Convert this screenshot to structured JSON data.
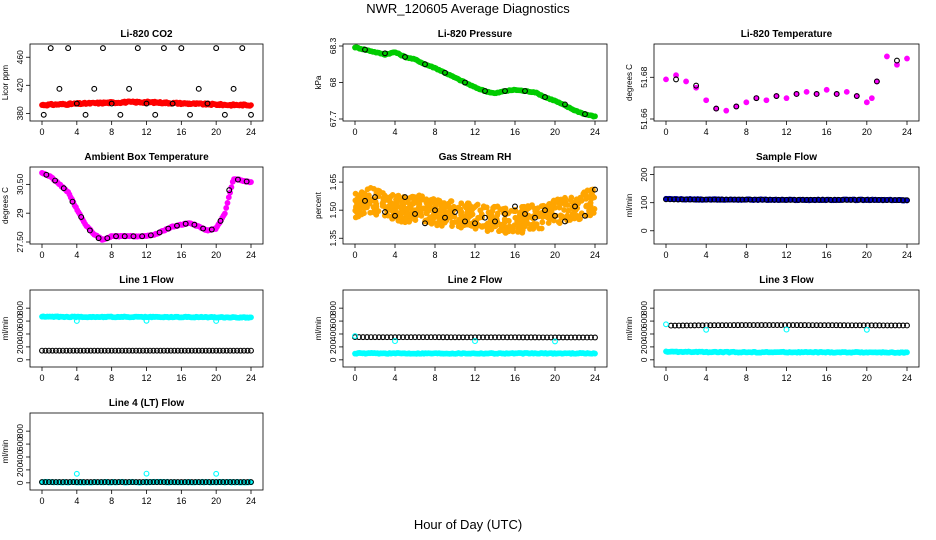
{
  "title": "NWR_120605  Average Diagnostics",
  "xlabel": "Hour of Day (UTC)",
  "colors": {
    "co2": "#ff0000",
    "pressure": "#00cc00",
    "temperature": "#ff00ff",
    "box": "#ff00ff",
    "rh": "#ffa500",
    "sample": "#0000cc",
    "line": "#00ffff",
    "points": "#000000"
  },
  "chart_data": [
    {
      "type": "scatter",
      "title": "Li-820 CO2",
      "ylabel": "Licor ppm",
      "xlim": [
        0,
        24
      ],
      "ylim": [
        372,
        476
      ],
      "xticks": [
        0,
        4,
        8,
        12,
        16,
        20,
        24
      ],
      "yticks": [
        380,
        420,
        460
      ],
      "series": [
        {
          "color": "#ff0000",
          "marker": "filled",
          "kind": "band",
          "x_start": 0,
          "x_end": 24,
          "values": [
            392,
            393,
            394,
            395,
            396,
            396,
            395,
            394,
            393,
            392,
            392
          ]
        },
        {
          "color": "#000000",
          "marker": "open",
          "x": [
            0.2,
            1.0,
            2.0,
            3.0,
            4.0,
            5.0,
            6.0,
            7.0,
            8.0,
            9.0,
            10.0,
            11.0,
            12.0,
            13.0,
            14.0,
            15.0,
            16.0,
            17.0,
            18.0,
            19.0,
            20.0,
            21.0,
            22.0,
            23.0,
            24.0
          ],
          "y": [
            378,
            473,
            415,
            473,
            394,
            378,
            415,
            473,
            394,
            378,
            415,
            473,
            394,
            378,
            473,
            394,
            473,
            378,
            415,
            394,
            473,
            378,
            415,
            473,
            378
          ]
        }
      ]
    },
    {
      "type": "line",
      "title": "Li-820 Pressure",
      "ylabel": "kPa",
      "xlim": [
        0,
        24
      ],
      "ylim": [
        67.7,
        68.3
      ],
      "xticks": [
        0,
        4,
        8,
        12,
        16,
        20,
        24
      ],
      "yticks": [
        67.7,
        68.0,
        68.3
      ],
      "series": [
        {
          "color": "#00cc00",
          "marker": "filled",
          "x": [
            0,
            1,
            2,
            3,
            4,
            5,
            6,
            7,
            8,
            9,
            10,
            11,
            12,
            13,
            14,
            15,
            16,
            17,
            18,
            19,
            20,
            21,
            22,
            23,
            24
          ],
          "y": [
            68.29,
            68.27,
            68.25,
            68.23,
            68.25,
            68.21,
            68.19,
            68.15,
            68.12,
            68.08,
            68.04,
            68.0,
            67.96,
            67.93,
            67.91,
            67.93,
            67.94,
            67.93,
            67.92,
            67.88,
            67.85,
            67.81,
            67.77,
            67.74,
            67.72
          ]
        },
        {
          "color": "#000000",
          "marker": "open",
          "x": [
            1,
            3,
            5,
            7,
            9,
            11,
            13,
            15,
            17,
            19,
            21,
            23
          ],
          "y": [
            68.27,
            68.24,
            68.21,
            68.15,
            68.08,
            68.0,
            67.93,
            67.93,
            67.93,
            67.88,
            67.82,
            67.74
          ]
        }
      ]
    },
    {
      "type": "scatter",
      "title": "Li-820 Temperature",
      "ylabel": "degrees C",
      "xlim": [
        0,
        24
      ],
      "ylim": [
        51.66,
        51.695
      ],
      "xticks": [
        0,
        4,
        8,
        12,
        16,
        20,
        24
      ],
      "yticks": [
        51.66,
        51.68
      ],
      "series": [
        {
          "color": "#ff00ff",
          "marker": "filled",
          "x": [
            0,
            1,
            2,
            3,
            4,
            5,
            6,
            7,
            8,
            9,
            10,
            11,
            12,
            13,
            14,
            15,
            16,
            17,
            18,
            19,
            20,
            20.5,
            21,
            22,
            23,
            24
          ],
          "y": [
            51.679,
            51.681,
            51.678,
            51.675,
            51.669,
            51.665,
            51.664,
            51.666,
            51.668,
            51.67,
            51.669,
            51.671,
            51.67,
            51.672,
            51.673,
            51.672,
            51.674,
            51.672,
            51.673,
            51.671,
            51.668,
            51.67,
            51.678,
            51.69,
            51.686,
            51.689
          ]
        },
        {
          "color": "#000000",
          "marker": "open",
          "x": [
            1,
            3,
            5,
            7,
            9,
            11,
            13,
            15,
            17,
            19,
            21,
            23
          ],
          "y": [
            51.679,
            51.676,
            51.665,
            51.666,
            51.67,
            51.671,
            51.672,
            51.672,
            51.672,
            51.671,
            51.678,
            51.688
          ]
        }
      ]
    },
    {
      "type": "line",
      "title": "Ambient Box Temperature",
      "ylabel": "degrees C",
      "xlim": [
        0,
        24
      ],
      "ylim": [
        27.5,
        31.3
      ],
      "xticks": [
        0,
        4,
        8,
        12,
        16,
        20,
        24
      ],
      "yticks": [
        27.5,
        29.0,
        30.5
      ],
      "series": [
        {
          "color": "#ff00ff",
          "marker": "filled",
          "x": [
            0,
            1,
            2,
            3,
            4,
            5,
            6,
            7,
            8,
            9,
            10,
            11,
            12,
            13,
            14,
            15,
            16,
            17,
            18,
            19,
            20,
            21,
            22,
            23,
            24
          ],
          "y": [
            31.1,
            30.9,
            30.5,
            30.1,
            29.2,
            28.4,
            27.9,
            27.6,
            27.8,
            27.8,
            27.8,
            27.8,
            27.8,
            27.9,
            28.1,
            28.3,
            28.4,
            28.5,
            28.3,
            28.1,
            28.2,
            29.0,
            30.8,
            30.7,
            30.6
          ]
        },
        {
          "color": "#000000",
          "marker": "open",
          "x": [
            0.5,
            1.5,
            2.5,
            3.5,
            4.5,
            5.5,
            6.5,
            7.5,
            8.5,
            9.5,
            10.5,
            11.5,
            12.5,
            13.5,
            14.5,
            15.5,
            16.5,
            17.5,
            18.5,
            19.5,
            20.5,
            21.5,
            22.5,
            23.5
          ],
          "y": [
            31.0,
            30.7,
            30.3,
            29.6,
            28.8,
            28.1,
            27.7,
            27.7,
            27.8,
            27.8,
            27.8,
            27.8,
            27.85,
            28.0,
            28.2,
            28.35,
            28.45,
            28.4,
            28.2,
            28.15,
            28.6,
            30.2,
            30.75,
            30.65
          ]
        }
      ]
    },
    {
      "type": "scatter",
      "title": "Gas Stream RH",
      "ylabel": "percent",
      "xlim": [
        0,
        24
      ],
      "ylim": [
        1.33,
        1.72
      ],
      "xticks": [
        0,
        4,
        8,
        12,
        16,
        20,
        24
      ],
      "yticks": [
        1.35,
        1.5,
        1.65
      ],
      "series": [
        {
          "color": "#ffa500",
          "marker": "filled",
          "kind": "cloud",
          "x_start": 0,
          "x_end": 24,
          "center": [
            1.52,
            1.55,
            1.53,
            1.5,
            1.52,
            1.49,
            1.48,
            1.47,
            1.46,
            1.45,
            1.44,
            1.46,
            1.47,
            1.5,
            1.52,
            1.55
          ],
          "spread": 0.07
        },
        {
          "color": "#000000",
          "marker": "open",
          "x": [
            1,
            2,
            3,
            4,
            5,
            6,
            7,
            8,
            9,
            10,
            11,
            12,
            13,
            14,
            15,
            16,
            17,
            18,
            19,
            20,
            21,
            22,
            23,
            24
          ],
          "y": [
            1.55,
            1.57,
            1.49,
            1.47,
            1.57,
            1.48,
            1.43,
            1.5,
            1.46,
            1.49,
            1.44,
            1.43,
            1.46,
            1.44,
            1.48,
            1.52,
            1.48,
            1.46,
            1.5,
            1.47,
            1.44,
            1.52,
            1.47,
            1.61
          ]
        }
      ]
    },
    {
      "type": "line",
      "title": "Sample Flow",
      "ylabel": "ml/min",
      "xlim": [
        0,
        24
      ],
      "ylim": [
        -40,
        220
      ],
      "xticks": [
        0,
        4,
        8,
        12,
        16,
        20,
        24
      ],
      "yticks": [
        0,
        100,
        200
      ],
      "series": [
        {
          "color": "#0000cc",
          "marker": "filled",
          "x": [
            0,
            4,
            8,
            12,
            16,
            20,
            24
          ],
          "y": [
            113,
            111,
            111,
            110,
            110,
            110,
            109
          ]
        },
        {
          "color": "#000000",
          "marker": "open",
          "x": [
            0,
            4,
            8,
            12,
            16,
            20,
            24
          ],
          "y": [
            112,
            111,
            111,
            110,
            110,
            110,
            109
          ]
        }
      ]
    },
    {
      "type": "line",
      "title": "Line 1 Flow",
      "ylabel": "ml/min",
      "xlim": [
        0,
        24
      ],
      "ylim": [
        -80,
        1050
      ],
      "xticks": [
        0,
        4,
        8,
        12,
        16,
        20,
        24
      ],
      "yticks": [
        0,
        200,
        400,
        600,
        800
      ],
      "series": [
        {
          "color": "#00ffff",
          "marker": "filled",
          "x": [
            0,
            4,
            8,
            12,
            16,
            20,
            24
          ],
          "y": [
            668,
            664,
            664,
            662,
            662,
            660,
            655
          ]
        },
        {
          "color": "#000000",
          "marker": "open",
          "x": [
            0,
            4,
            8,
            12,
            16,
            20,
            24
          ],
          "y": [
            142,
            142,
            142,
            142,
            142,
            142,
            142
          ]
        },
        {
          "color": "#00ffff",
          "marker": "open",
          "x": [
            4,
            12,
            20
          ],
          "y": [
            602,
            605,
            602
          ]
        }
      ]
    },
    {
      "type": "line",
      "title": "Line 2 Flow",
      "ylabel": "ml/min",
      "xlim": [
        0,
        24
      ],
      "ylim": [
        -80,
        1050
      ],
      "xticks": [
        0,
        4,
        8,
        12,
        16,
        20,
        24
      ],
      "yticks": [
        0,
        200,
        400,
        600,
        800
      ],
      "series": [
        {
          "color": "#00ffff",
          "marker": "filled",
          "x": [
            0,
            4,
            8,
            12,
            16,
            20,
            24
          ],
          "y": [
            100,
            100,
            100,
            100,
            100,
            100,
            100
          ]
        },
        {
          "color": "#000000",
          "marker": "open",
          "x": [
            0,
            4,
            8,
            12,
            16,
            20,
            24
          ],
          "y": [
            352,
            350,
            350,
            348,
            348,
            347,
            346
          ]
        },
        {
          "color": "#00ffff",
          "marker": "open",
          "x": [
            0,
            4,
            12,
            20
          ],
          "y": [
            368,
            290,
            290,
            285
          ]
        }
      ]
    },
    {
      "type": "line",
      "title": "Line 3 Flow",
      "ylabel": "ml/min",
      "xlim": [
        0,
        24
      ],
      "ylim": [
        -80,
        1050
      ],
      "xticks": [
        0,
        4,
        8,
        12,
        16,
        20,
        24
      ],
      "yticks": [
        0,
        200,
        400,
        600,
        800
      ],
      "series": [
        {
          "color": "#00ffff",
          "marker": "filled",
          "x": [
            0,
            4,
            8,
            12,
            16,
            20,
            24
          ],
          "y": [
            125,
            120,
            118,
            118,
            116,
            116,
            112
          ]
        },
        {
          "color": "#000000",
          "marker": "open",
          "x": [
            0.5,
            4,
            8,
            12,
            16,
            20,
            24
          ],
          "y": [
            530,
            535,
            538,
            538,
            536,
            534,
            532
          ]
        },
        {
          "color": "#00ffff",
          "marker": "open",
          "x": [
            0,
            4,
            12,
            20
          ],
          "y": [
            550,
            465,
            468,
            465
          ]
        }
      ]
    },
    {
      "type": "line",
      "title": "Line 4 (LT) Flow",
      "ylabel": "ml/min",
      "xlim": [
        0,
        24
      ],
      "ylim": [
        -80,
        1050
      ],
      "xticks": [
        0,
        4,
        8,
        12,
        16,
        20,
        24
      ],
      "yticks": [
        0,
        200,
        400,
        600,
        800
      ],
      "series": [
        {
          "color": "#00ffff",
          "marker": "filled",
          "x": [
            0,
            4,
            8,
            12,
            16,
            20,
            24
          ],
          "y": [
            10,
            10,
            10,
            10,
            10,
            10,
            10
          ]
        },
        {
          "color": "#000000",
          "marker": "open",
          "x": [
            0,
            4,
            8,
            12,
            16,
            20,
            24
          ],
          "y": [
            12,
            12,
            12,
            12,
            12,
            12,
            12
          ]
        },
        {
          "color": "#00ffff",
          "marker": "open",
          "x": [
            4,
            12,
            20
          ],
          "y": [
            140,
            142,
            140
          ]
        }
      ]
    }
  ]
}
